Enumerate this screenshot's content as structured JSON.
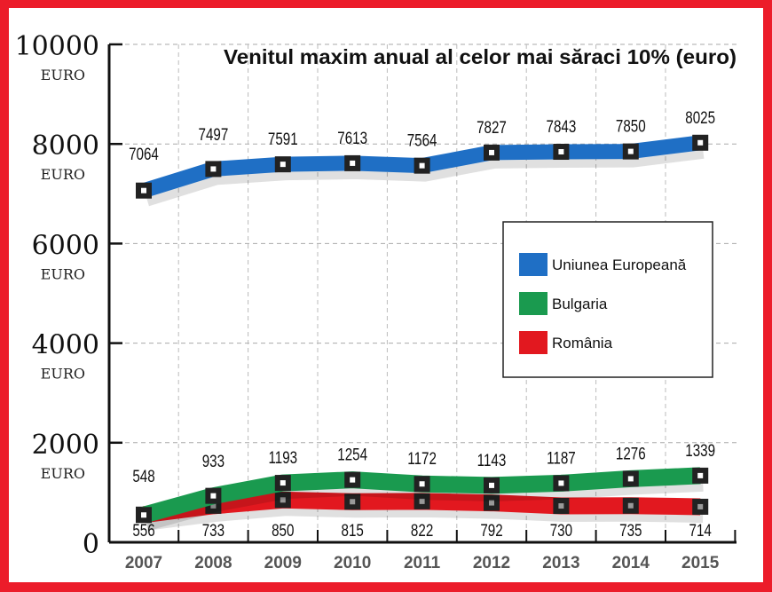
{
  "chart_data": {
    "type": "line",
    "title": "Venitul maxim anual al celor mai săraci 10% (euro)",
    "categories": [
      "2007",
      "2008",
      "2009",
      "2010",
      "2011",
      "2012",
      "2013",
      "2014",
      "2015"
    ],
    "ylim": [
      0,
      10000
    ],
    "yticks": [
      0,
      2000,
      4000,
      6000,
      8000,
      10000
    ],
    "ytick_unit": "EURO",
    "grid": true,
    "legend_position": "right",
    "series": [
      {
        "name": "Uniunea Europeană",
        "color": "#1f6fc5",
        "values": [
          7064,
          7497,
          7591,
          7613,
          7564,
          7827,
          7843,
          7850,
          8025
        ]
      },
      {
        "name": "Bulgaria",
        "color": "#1a9a4f",
        "values": [
          548,
          933,
          1193,
          1254,
          1172,
          1143,
          1187,
          1276,
          1339
        ]
      },
      {
        "name": "România",
        "color": "#e2181f",
        "values": [
          556,
          733,
          850,
          815,
          822,
          792,
          730,
          735,
          714
        ]
      }
    ]
  }
}
